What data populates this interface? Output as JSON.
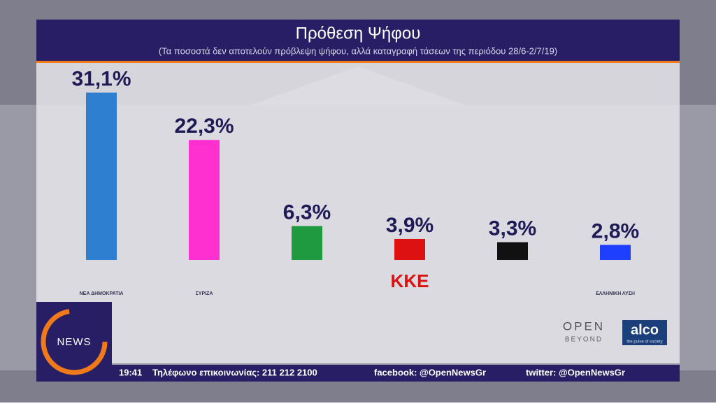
{
  "chart_data": {
    "type": "bar",
    "title": "Πρόθεση Ψήφου",
    "subtitle": "(Τα ποσοστά δεν αποτελούν πρόβλεψη ψήφου, αλλά καταγραφή τάσεων της περιόδου 28/6-2/7/19)",
    "categories": [
      "ΝΕΑ ΔΗΜΟΚΡΑΤΙΑ",
      "ΣΥΡΙΖΑ",
      null,
      "ΚΚΕ",
      null,
      "ΕΛΛΗΝΙΚΗ ΛΥΣΗ"
    ],
    "values": [
      31.1,
      22.3,
      6.3,
      3.9,
      3.3,
      2.8
    ],
    "value_labels": [
      "31,1%",
      "22,3%",
      "6,3%",
      "3,9%",
      "3,3%",
      "2,8%"
    ],
    "colors": [
      "#2f7fd0",
      "#ff2fd0",
      "#1f9a3e",
      "#dd1111",
      "#111111",
      "#1f3fff"
    ]
  },
  "ticker": {
    "time": "19:41",
    "phone": "Τηλέφωνο επικοινωνίας: 211 212 2100",
    "facebook": "facebook: @OpenNewsGr",
    "twitter": "twitter: @OpenNewsGr"
  },
  "branding": {
    "channel": "NEWS",
    "open": "OPEN",
    "beyond": "BEYOND",
    "pollster": "alco",
    "pollster_tagline": "the pulse of society"
  }
}
